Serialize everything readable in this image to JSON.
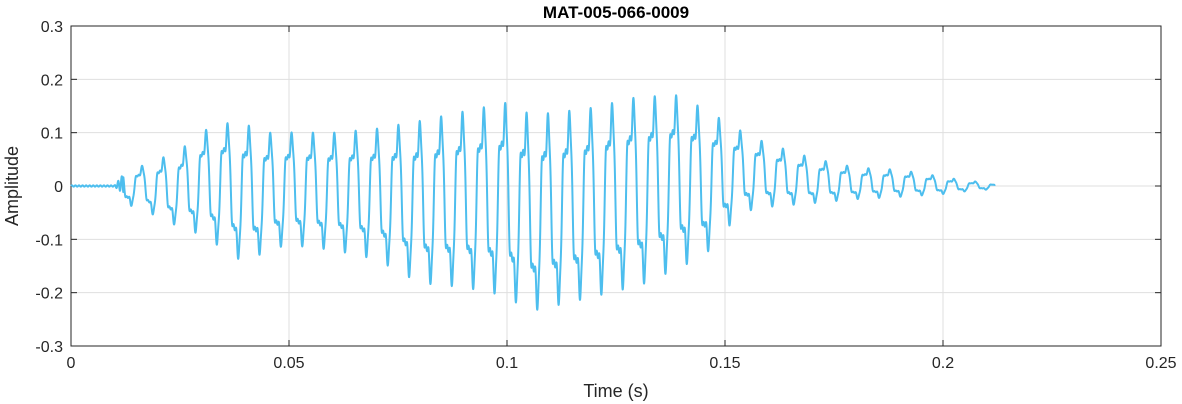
{
  "chart_data": {
    "type": "line",
    "title": "MAT-005-066-0009",
    "xlabel": "Time (s)",
    "ylabel": "Amplitude",
    "xlim": [
      0,
      0.25
    ],
    "ylim": [
      -0.3,
      0.3
    ],
    "xticks": [
      0,
      0.05,
      0.1,
      0.15,
      0.2,
      0.25
    ],
    "xtick_labels": [
      "0",
      "0.05",
      "0.1",
      "0.15",
      "0.2",
      "0.25"
    ],
    "yticks": [
      -0.3,
      -0.2,
      -0.1,
      0,
      0.1,
      0.2,
      0.3
    ],
    "ytick_labels": [
      "-0.3",
      "-0.2",
      "-0.1",
      "0",
      "0.1",
      "0.2",
      "0.3"
    ],
    "grid": true,
    "series": [
      {
        "color": "#4DBEEE",
        "x": [
          0,
          0.01,
          0.0125,
          0.015,
          0.02,
          0.025,
          0.03,
          0.035,
          0.04,
          0.045,
          0.05,
          0.06,
          0.07,
          0.08,
          0.09,
          0.1,
          0.105,
          0.11,
          0.12,
          0.13,
          0.133,
          0.14,
          0.145,
          0.15,
          0.155,
          0.16,
          0.17,
          0.18,
          0.19,
          0.2,
          0.205,
          0.21,
          0.212
        ],
        "y": [
          0.003,
          0.003,
          0.06,
          0.04,
          0.06,
          0.08,
          0.12,
          0.14,
          0.14,
          0.12,
          0.12,
          0.12,
          0.13,
          0.15,
          0.17,
          0.19,
          0.17,
          0.17,
          0.18,
          0.2,
          0.2,
          0.2,
          0.17,
          0.14,
          0.11,
          0.09,
          0.06,
          0.04,
          0.035,
          0.02,
          0.012,
          0.008,
          0.004
        ],
        "y_min": [
          -0.003,
          -0.003,
          -0.05,
          -0.04,
          -0.07,
          -0.09,
          -0.11,
          -0.14,
          -0.17,
          -0.14,
          -0.13,
          -0.14,
          -0.16,
          -0.21,
          -0.22,
          -0.24,
          -0.27,
          -0.26,
          -0.24,
          -0.22,
          -0.21,
          -0.18,
          -0.16,
          -0.1,
          -0.06,
          -0.05,
          -0.04,
          -0.03,
          -0.025,
          -0.018,
          -0.012,
          -0.008,
          -0.004
        ]
      }
    ]
  }
}
